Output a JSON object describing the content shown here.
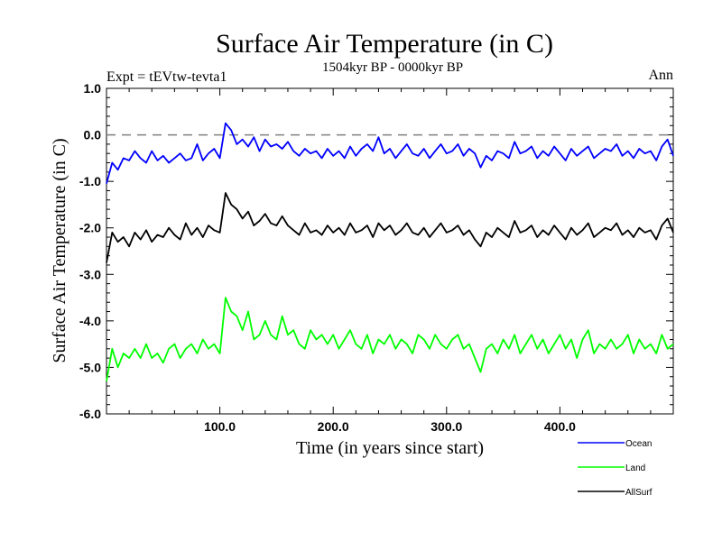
{
  "chart_data": {
    "type": "line",
    "title": "Surface Air Temperature (in C)",
    "subtitle": "1504kyr BP - 0000kyr BP",
    "left_note": "Expt = tEVtw-tevta1",
    "right_note": "Ann",
    "xlabel": "Time (in years since start)",
    "ylabel": "Surface Air Temperature (in C)",
    "xlim": [
      0,
      500
    ],
    "ylim": [
      -6.0,
      1.0
    ],
    "xticks": [
      100,
      200,
      300,
      400
    ],
    "xtick_labels": [
      "100.0",
      "200.0",
      "300.0",
      "400.0"
    ],
    "yticks": [
      1.0,
      0.0,
      -1.0,
      -2.0,
      -3.0,
      -4.0,
      -5.0,
      -6.0
    ],
    "ytick_labels": [
      "1.0",
      "0.0",
      "-1.0",
      "-2.0",
      "-3.0",
      "-4.0",
      "-5.0",
      "-6.0"
    ],
    "reference_line": 0.0,
    "legend_position": "bottom-right",
    "series": [
      {
        "name": "Ocean",
        "color": "#0000ff",
        "x": [
          0,
          5,
          10,
          15,
          20,
          25,
          30,
          35,
          40,
          45,
          50,
          55,
          60,
          65,
          70,
          75,
          80,
          85,
          90,
          95,
          100,
          105,
          110,
          115,
          120,
          125,
          130,
          135,
          140,
          145,
          150,
          155,
          160,
          165,
          170,
          175,
          180,
          185,
          190,
          195,
          200,
          205,
          210,
          215,
          220,
          225,
          230,
          235,
          240,
          245,
          250,
          255,
          260,
          265,
          270,
          275,
          280,
          285,
          290,
          295,
          300,
          305,
          310,
          315,
          320,
          325,
          330,
          335,
          340,
          345,
          350,
          355,
          360,
          365,
          370,
          375,
          380,
          385,
          390,
          395,
          400,
          405,
          410,
          415,
          420,
          425,
          430,
          435,
          440,
          445,
          450,
          455,
          460,
          465,
          470,
          475,
          480,
          485,
          490,
          495,
          500
        ],
        "values": [
          -1.05,
          -0.6,
          -0.75,
          -0.5,
          -0.55,
          -0.35,
          -0.5,
          -0.6,
          -0.35,
          -0.55,
          -0.45,
          -0.6,
          -0.5,
          -0.4,
          -0.55,
          -0.5,
          -0.2,
          -0.55,
          -0.4,
          -0.3,
          -0.5,
          0.25,
          0.1,
          -0.2,
          -0.1,
          -0.25,
          -0.05,
          -0.35,
          -0.1,
          -0.25,
          -0.2,
          -0.3,
          -0.15,
          -0.35,
          -0.45,
          -0.3,
          -0.4,
          -0.35,
          -0.5,
          -0.3,
          -0.45,
          -0.35,
          -0.5,
          -0.25,
          -0.45,
          -0.3,
          -0.2,
          -0.35,
          -0.05,
          -0.4,
          -0.3,
          -0.5,
          -0.35,
          -0.2,
          -0.4,
          -0.45,
          -0.3,
          -0.5,
          -0.35,
          -0.2,
          -0.4,
          -0.35,
          -0.2,
          -0.45,
          -0.3,
          -0.4,
          -0.7,
          -0.45,
          -0.55,
          -0.35,
          -0.4,
          -0.5,
          -0.15,
          -0.4,
          -0.35,
          -0.25,
          -0.5,
          -0.35,
          -0.45,
          -0.25,
          -0.4,
          -0.55,
          -0.3,
          -0.45,
          -0.35,
          -0.25,
          -0.5,
          -0.4,
          -0.3,
          -0.35,
          -0.2,
          -0.45,
          -0.35,
          -0.5,
          -0.3,
          -0.4,
          -0.35,
          -0.55,
          -0.25,
          -0.1,
          -0.45
        ]
      },
      {
        "name": "Land",
        "color": "#00ff00",
        "x": [
          0,
          5,
          10,
          15,
          20,
          25,
          30,
          35,
          40,
          45,
          50,
          55,
          60,
          65,
          70,
          75,
          80,
          85,
          90,
          95,
          100,
          105,
          110,
          115,
          120,
          125,
          130,
          135,
          140,
          145,
          150,
          155,
          160,
          165,
          170,
          175,
          180,
          185,
          190,
          195,
          200,
          205,
          210,
          215,
          220,
          225,
          230,
          235,
          240,
          245,
          250,
          255,
          260,
          265,
          270,
          275,
          280,
          285,
          290,
          295,
          300,
          305,
          310,
          315,
          320,
          325,
          330,
          335,
          340,
          345,
          350,
          355,
          360,
          365,
          370,
          375,
          380,
          385,
          390,
          395,
          400,
          405,
          410,
          415,
          420,
          425,
          430,
          435,
          440,
          445,
          450,
          455,
          460,
          465,
          470,
          475,
          480,
          485,
          490,
          495,
          500
        ],
        "values": [
          -5.3,
          -4.6,
          -5.0,
          -4.7,
          -4.8,
          -4.6,
          -4.8,
          -4.5,
          -4.8,
          -4.7,
          -4.9,
          -4.6,
          -4.5,
          -4.8,
          -4.6,
          -4.5,
          -4.7,
          -4.4,
          -4.6,
          -4.5,
          -4.7,
          -3.5,
          -3.8,
          -3.9,
          -4.2,
          -3.8,
          -4.4,
          -4.3,
          -4.0,
          -4.3,
          -4.4,
          -3.9,
          -4.3,
          -4.2,
          -4.5,
          -4.6,
          -4.2,
          -4.4,
          -4.3,
          -4.5,
          -4.3,
          -4.6,
          -4.4,
          -4.2,
          -4.5,
          -4.6,
          -4.3,
          -4.7,
          -4.4,
          -4.5,
          -4.3,
          -4.6,
          -4.4,
          -4.5,
          -4.7,
          -4.3,
          -4.4,
          -4.6,
          -4.3,
          -4.5,
          -4.6,
          -4.4,
          -4.3,
          -4.6,
          -4.5,
          -4.8,
          -5.1,
          -4.6,
          -4.5,
          -4.7,
          -4.4,
          -4.6,
          -4.3,
          -4.7,
          -4.5,
          -4.3,
          -4.6,
          -4.4,
          -4.7,
          -4.5,
          -4.3,
          -4.6,
          -4.4,
          -4.8,
          -4.4,
          -4.2,
          -4.7,
          -4.5,
          -4.6,
          -4.4,
          -4.6,
          -4.5,
          -4.3,
          -4.7,
          -4.4,
          -4.6,
          -4.5,
          -4.7,
          -4.3,
          -4.6,
          -4.5
        ]
      },
      {
        "name": "AllSurf",
        "color": "#000000",
        "x": [
          0,
          5,
          10,
          15,
          20,
          25,
          30,
          35,
          40,
          45,
          50,
          55,
          60,
          65,
          70,
          75,
          80,
          85,
          90,
          95,
          100,
          105,
          110,
          115,
          120,
          125,
          130,
          135,
          140,
          145,
          150,
          155,
          160,
          165,
          170,
          175,
          180,
          185,
          190,
          195,
          200,
          205,
          210,
          215,
          220,
          225,
          230,
          235,
          240,
          245,
          250,
          255,
          260,
          265,
          270,
          275,
          280,
          285,
          290,
          295,
          300,
          305,
          310,
          315,
          320,
          325,
          330,
          335,
          340,
          345,
          350,
          355,
          360,
          365,
          370,
          375,
          380,
          385,
          390,
          395,
          400,
          405,
          410,
          415,
          420,
          425,
          430,
          435,
          440,
          445,
          450,
          455,
          460,
          465,
          470,
          475,
          480,
          485,
          490,
          495,
          500
        ],
        "values": [
          -2.75,
          -2.1,
          -2.3,
          -2.2,
          -2.4,
          -2.1,
          -2.25,
          -2.05,
          -2.3,
          -2.15,
          -2.2,
          -2.0,
          -2.15,
          -2.25,
          -1.9,
          -2.15,
          -2.0,
          -2.2,
          -1.95,
          -2.05,
          -2.1,
          -1.25,
          -1.5,
          -1.6,
          -1.8,
          -1.65,
          -1.95,
          -1.85,
          -1.7,
          -1.9,
          -1.95,
          -1.75,
          -1.95,
          -2.05,
          -2.15,
          -1.9,
          -2.1,
          -2.05,
          -2.15,
          -1.95,
          -2.1,
          -2.0,
          -2.15,
          -1.9,
          -2.1,
          -2.05,
          -1.95,
          -2.2,
          -1.9,
          -2.05,
          -1.95,
          -2.15,
          -2.05,
          -1.9,
          -2.1,
          -2.15,
          -2.0,
          -2.2,
          -2.05,
          -1.9,
          -2.1,
          -2.05,
          -1.95,
          -2.15,
          -2.05,
          -2.25,
          -2.4,
          -2.1,
          -2.2,
          -2.0,
          -2.1,
          -2.2,
          -1.85,
          -2.1,
          -2.05,
          -1.95,
          -2.2,
          -2.05,
          -2.15,
          -1.95,
          -2.1,
          -2.25,
          -2.0,
          -2.15,
          -2.05,
          -1.9,
          -2.2,
          -2.1,
          -2.0,
          -2.05,
          -1.9,
          -2.15,
          -2.05,
          -2.2,
          -2.0,
          -2.1,
          -2.05,
          -2.25,
          -1.95,
          -1.8,
          -2.1
        ]
      }
    ]
  }
}
